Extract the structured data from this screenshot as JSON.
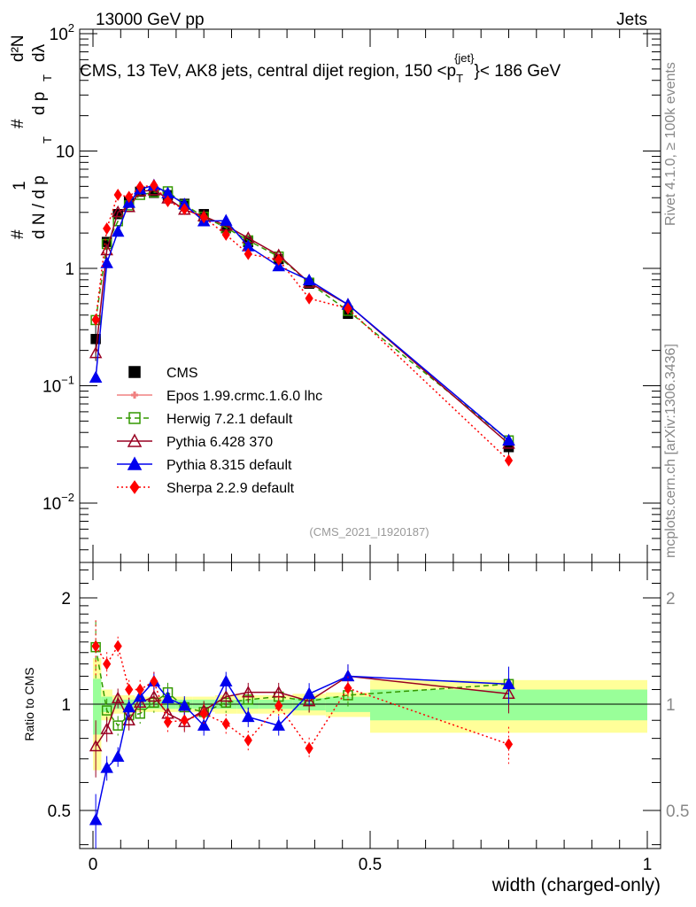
{
  "header": {
    "left": "13000 GeV pp",
    "right": "Jets"
  },
  "side_labels": {
    "rivet": "Rivet 4.1.0, ≥ 100k events",
    "mcplots": "mcplots.cern.ch [arXiv:1306.3436]"
  },
  "analysis_id": "(CMS_2021_I1920187)",
  "chart_data": [
    {
      "type": "line",
      "title": "CMS, 13 TeV, AK8 jets, central dijet region, 150 <p_T^{jet}< 186 GeV",
      "title_parts": {
        "pre": "CMS, 13 TeV, AK8 jets, central dijet region, 150 <p",
        "sub": "T",
        "sup": "{jet}",
        "post": "}< 186 GeV"
      },
      "ylabel": "1/dN/dp_T  d²N/dp_T dλ",
      "ylabel_parts": {
        "a": "#",
        "b": "1",
        "c": "d N / d p",
        "d": "T",
        "e": "#",
        "f": "d²N",
        "g": "d p",
        "h": "T",
        "i": "dλ"
      },
      "yscale": "log",
      "ylim": [
        0.003,
        100
      ],
      "xlim": [
        -0.01,
        1.0
      ],
      "yticks": [
        {
          "v": 100,
          "base": "10",
          "exp": "2"
        },
        {
          "v": 10,
          "base": "10",
          "exp": ""
        },
        {
          "v": 1,
          "base": "1",
          "exp": ""
        },
        {
          "v": 0.1,
          "base": "10",
          "exp": "−1"
        },
        {
          "v": 0.01,
          "base": "10",
          "exp": "−2"
        }
      ],
      "x": [
        0.005,
        0.025,
        0.045,
        0.065,
        0.085,
        0.11,
        0.135,
        0.165,
        0.2,
        0.24,
        0.28,
        0.335,
        0.39,
        0.46,
        0.75
      ],
      "bin_edges": [
        0,
        0.015,
        0.035,
        0.055,
        0.075,
        0.095,
        0.12,
        0.15,
        0.18,
        0.22,
        0.26,
        0.3,
        0.36,
        0.42,
        0.5,
        1.0
      ],
      "data": {
        "name": "CMS",
        "values": [
          0.25,
          1.68,
          2.9,
          3.7,
          4.5,
          4.4,
          4.2,
          3.55,
          2.9,
          2.2,
          1.68,
          1.2,
          0.74,
          0.41,
          0.03
        ],
        "rel_err_total": [
          0.35,
          0.1,
          0.06,
          0.06,
          0.05,
          0.05,
          0.05,
          0.05,
          0.05,
          0.06,
          0.06,
          0.06,
          0.07,
          0.08,
          0.17
        ],
        "rel_err_stat": [
          0.18,
          0.05,
          0.03,
          0.03,
          0.03,
          0.03,
          0.03,
          0.03,
          0.03,
          0.03,
          0.03,
          0.03,
          0.04,
          0.05,
          0.1
        ]
      },
      "legend_position": "center-left",
      "series": [
        {
          "name": "CMS",
          "label": "CMS",
          "color": "#000000",
          "marker": "square-filled",
          "dash": "",
          "ratio": []
        },
        {
          "name": "Epos",
          "label": "Epos 1.99.crmc.1.6.0 lhc",
          "color": "#f08080",
          "marker": "cross-open",
          "dash": "",
          "ratio": []
        },
        {
          "name": "Herwig",
          "label": "Herwig 7.2.1 default",
          "color": "#339900",
          "marker": "square-open",
          "dash": "6,4",
          "ratio": [
            1.45,
            0.96,
            0.87,
            0.93,
            0.94,
            1.01,
            1.08,
            0.98,
            0.95,
            1.01,
            1.03,
            1.05,
            1.02,
            1.06,
            1.14
          ]
        },
        {
          "name": "Pythia6",
          "label": "Pythia 6.428 370",
          "color": "#990022",
          "marker": "triangle-open",
          "dash": "",
          "ratio": [
            0.76,
            0.85,
            1.04,
            0.9,
            1.01,
            1.05,
            0.94,
            0.89,
            0.96,
            1.05,
            1.08,
            1.08,
            1.02,
            1.2,
            1.07
          ]
        },
        {
          "name": "Pythia8",
          "label": "Pythia 8.315 default",
          "color": "#0000ee",
          "marker": "triangle-filled",
          "dash": "",
          "ratio": [
            0.47,
            0.66,
            0.71,
            0.98,
            1.05,
            1.16,
            1.04,
            0.99,
            0.87,
            1.16,
            0.92,
            0.87,
            1.07,
            1.2,
            1.14
          ]
        },
        {
          "name": "Sherpa",
          "label": "Sherpa 2.2.9 default",
          "color": "#ff0000",
          "marker": "diamond-filled",
          "dash": "2,3",
          "ratio": [
            1.46,
            1.3,
            1.46,
            1.1,
            1.1,
            1.16,
            0.89,
            0.9,
            0.94,
            0.88,
            0.79,
            0.99,
            0.75,
            1.11,
            0.77
          ]
        }
      ]
    },
    {
      "type": "line",
      "title": "",
      "ylabel": "Ratio to CMS",
      "xlabel": "width (charged-only)",
      "yscale": "log",
      "ylim": [
        0.39,
        2.52
      ],
      "yticks": [
        {
          "v": 2,
          "label": "2"
        },
        {
          "v": 1,
          "label": "1"
        },
        {
          "v": 0.5,
          "label": "0.5"
        }
      ],
      "xticks": [
        {
          "v": 0,
          "label": "0"
        },
        {
          "v": 0.5,
          "label": "0.5"
        },
        {
          "v": 1,
          "label": "1"
        }
      ],
      "band_colors": {
        "total": "#ffff99",
        "stat": "#99ff99"
      }
    }
  ]
}
